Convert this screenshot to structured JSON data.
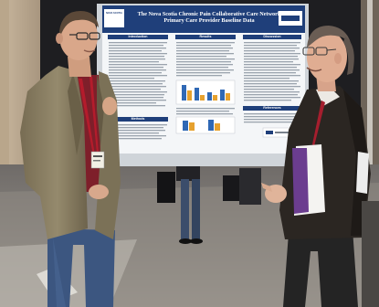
{
  "poster": {
    "title_line1": "The Nova Scotia Chronic Pain Collaborative Care Network",
    "title_line2": "Primary Care Provider Baseline Data",
    "logo_text": "NOVA SCOTIA",
    "sections": {
      "introduction": "Introduction",
      "results": "Results",
      "discussion": "Discussion",
      "methods": "Methods",
      "references": "References"
    }
  },
  "colors": {
    "poster_navy": "#1f3f7a",
    "jacket": "#8c8265",
    "lanyard": "#b41c2c",
    "wall": "#1d1d1f",
    "floor": "#9e9a94"
  }
}
